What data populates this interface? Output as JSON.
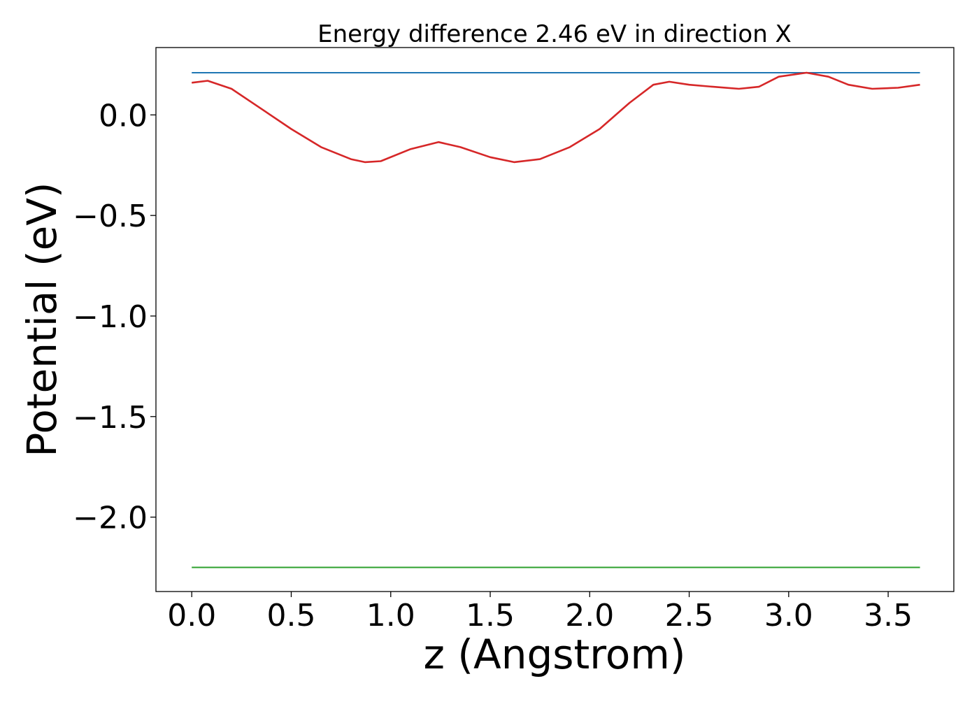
{
  "chart_data": {
    "type": "line",
    "title": "Energy difference 2.46 eV in direction X",
    "xlabel": "z (Angstrom)",
    "ylabel": "Potential (eV)",
    "xlim": [
      -0.18,
      3.83
    ],
    "ylim": [
      -2.37,
      0.335
    ],
    "xticks": [
      {
        "value": 0.0,
        "label": "0.0"
      },
      {
        "value": 0.5,
        "label": "0.5"
      },
      {
        "value": 1.0,
        "label": "1.0"
      },
      {
        "value": 1.5,
        "label": "1.5"
      },
      {
        "value": 2.0,
        "label": "2.0"
      },
      {
        "value": 2.5,
        "label": "2.5"
      },
      {
        "value": 3.0,
        "label": "3.0"
      },
      {
        "value": 3.5,
        "label": "3.5"
      }
    ],
    "yticks": [
      {
        "value": 0.0,
        "label": "0.0"
      },
      {
        "value": -0.5,
        "label": "−0.5"
      },
      {
        "value": -1.0,
        "label": "−1.0"
      },
      {
        "value": -1.5,
        "label": "−1.5"
      },
      {
        "value": -2.0,
        "label": "−2.0"
      }
    ],
    "grid": false,
    "series": [
      {
        "color": "#1f77b4",
        "x": [
          0.0,
          3.66
        ],
        "y": [
          0.21,
          0.21
        ]
      },
      {
        "color": "#d62728",
        "x": [
          0.0,
          0.08,
          0.2,
          0.35,
          0.5,
          0.65,
          0.8,
          0.87,
          0.95,
          1.1,
          1.24,
          1.35,
          1.5,
          1.62,
          1.75,
          1.9,
          2.05,
          2.2,
          2.32,
          2.4,
          2.5,
          2.62,
          2.75,
          2.85,
          2.95,
          3.09,
          3.2,
          3.3,
          3.42,
          3.55,
          3.66
        ],
        "y": [
          0.16,
          0.17,
          0.13,
          0.03,
          -0.07,
          -0.16,
          -0.22,
          -0.235,
          -0.23,
          -0.17,
          -0.135,
          -0.16,
          -0.21,
          -0.235,
          -0.22,
          -0.16,
          -0.07,
          0.06,
          0.15,
          0.165,
          0.15,
          0.14,
          0.13,
          0.14,
          0.19,
          0.21,
          0.19,
          0.15,
          0.13,
          0.135,
          0.15
        ]
      },
      {
        "color": "#2ca02c",
        "x": [
          0.0,
          3.66
        ],
        "y": [
          -2.25,
          -2.25
        ]
      }
    ]
  }
}
